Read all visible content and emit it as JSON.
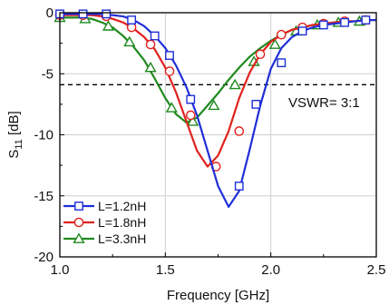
{
  "chart_data": {
    "type": "line",
    "xlabel": "Frequency [GHz]",
    "ylabel_main": "S",
    "ylabel_sub": "11",
    "ylabel_unit": " [dB]",
    "xlim": [
      1.0,
      2.5
    ],
    "ylim": [
      -20,
      0
    ],
    "xticks": [
      "1.0",
      "1.5",
      "2.0",
      "2.5"
    ],
    "yticks": [
      "0",
      "-5",
      "-10",
      "-15",
      "-20"
    ],
    "xtick_values": [
      1.0,
      1.5,
      2.0,
      2.5
    ],
    "ytick_values": [
      0,
      -5,
      -10,
      -15,
      -20
    ],
    "grid": true,
    "legend_position": "bottom-left",
    "reference_line": {
      "y": -5.9,
      "label": "VSWR= 3:1"
    },
    "series": [
      {
        "name": "L=1.2nH",
        "color": "#1f2fd6",
        "marker": "square",
        "x": [
          1.0,
          1.05,
          1.1,
          1.15,
          1.2,
          1.25,
          1.3,
          1.35,
          1.4,
          1.45,
          1.5,
          1.55,
          1.6,
          1.65,
          1.7,
          1.75,
          1.8,
          1.85,
          1.9,
          1.95,
          2.0,
          2.05,
          2.1,
          2.15,
          2.2,
          2.25,
          2.3,
          2.35,
          2.4,
          2.45,
          2.5
        ],
        "y": [
          -0.1,
          -0.1,
          -0.1,
          -0.1,
          -0.1,
          -0.2,
          -0.3,
          -0.6,
          -1.1,
          -1.9,
          -2.9,
          -4.3,
          -6.1,
          -8.4,
          -11.3,
          -14.2,
          -15.9,
          -14.6,
          -11.2,
          -7.6,
          -4.6,
          -2.9,
          -2.0,
          -1.5,
          -1.2,
          -1.0,
          -0.9,
          -0.8,
          -0.7,
          -0.6,
          -0.6
        ],
        "marker_x": [
          1.0,
          1.11,
          1.22,
          1.34,
          1.45,
          1.52,
          1.62,
          1.85,
          1.93,
          2.05,
          2.15,
          2.25,
          2.35,
          2.45
        ],
        "marker_y": [
          -0.1,
          -0.1,
          -0.1,
          -0.6,
          -1.9,
          -3.5,
          -7.1,
          -14.2,
          -7.5,
          -4.1,
          -1.5,
          -1.0,
          -0.8,
          -0.6
        ]
      },
      {
        "name": "L=1.8nH",
        "color": "#e0221e",
        "marker": "circle",
        "x": [
          1.0,
          1.05,
          1.1,
          1.15,
          1.2,
          1.25,
          1.3,
          1.35,
          1.4,
          1.45,
          1.5,
          1.55,
          1.6,
          1.65,
          1.7,
          1.75,
          1.8,
          1.85,
          1.9,
          1.95,
          2.0,
          2.05,
          2.1,
          2.15,
          2.2,
          2.25,
          2.3,
          2.35,
          2.4,
          2.45,
          2.5
        ],
        "y": [
          -0.2,
          -0.2,
          -0.2,
          -0.2,
          -0.3,
          -0.5,
          -0.8,
          -1.3,
          -2.0,
          -3.0,
          -4.5,
          -6.5,
          -8.9,
          -11.3,
          -12.6,
          -11.7,
          -9.7,
          -7.0,
          -4.9,
          -3.4,
          -2.4,
          -1.8,
          -1.4,
          -1.2,
          -1.0,
          -0.9,
          -0.8,
          -0.7,
          -0.7,
          -0.6,
          -0.6
        ],
        "marker_x": [
          1.0,
          1.11,
          1.22,
          1.34,
          1.43,
          1.52,
          1.62,
          1.74,
          1.85,
          1.95,
          2.05,
          2.15,
          2.25,
          2.35,
          2.45
        ],
        "marker_y": [
          -0.2,
          -0.2,
          -0.3,
          -1.2,
          -2.6,
          -4.8,
          -8.4,
          -12.6,
          -9.7,
          -3.4,
          -1.8,
          -1.2,
          -0.9,
          -0.7,
          -0.6
        ]
      },
      {
        "name": "L=3.3nH",
        "color": "#1f8a1f",
        "marker": "triangle",
        "x": [
          1.0,
          1.05,
          1.1,
          1.15,
          1.2,
          1.25,
          1.3,
          1.35,
          1.4,
          1.45,
          1.5,
          1.55,
          1.6,
          1.65,
          1.7,
          1.75,
          1.8,
          1.85,
          1.9,
          1.95,
          2.0,
          2.05,
          2.1,
          2.15,
          2.2,
          2.25,
          2.3,
          2.35,
          2.4,
          2.45,
          2.5
        ],
        "y": [
          -0.4,
          -0.4,
          -0.4,
          -0.5,
          -0.8,
          -1.2,
          -1.9,
          -2.8,
          -3.9,
          -5.4,
          -7.0,
          -8.3,
          -9.0,
          -8.6,
          -7.6,
          -6.6,
          -5.5,
          -4.5,
          -3.6,
          -2.9,
          -2.3,
          -1.8,
          -1.4,
          -1.2,
          -1.0,
          -0.9,
          -0.8,
          -0.7,
          -0.7,
          -0.6,
          -0.6
        ],
        "marker_x": [
          1.0,
          1.12,
          1.23,
          1.33,
          1.43,
          1.53,
          1.63,
          1.73,
          1.83,
          1.92,
          2.02,
          2.12,
          2.22,
          2.32,
          2.42
        ],
        "marker_y": [
          -0.4,
          -0.5,
          -1.1,
          -2.4,
          -4.5,
          -7.8,
          -8.9,
          -7.6,
          -5.9,
          -4.0,
          -2.6,
          -1.5,
          -1.0,
          -0.8,
          -0.7
        ]
      }
    ]
  }
}
